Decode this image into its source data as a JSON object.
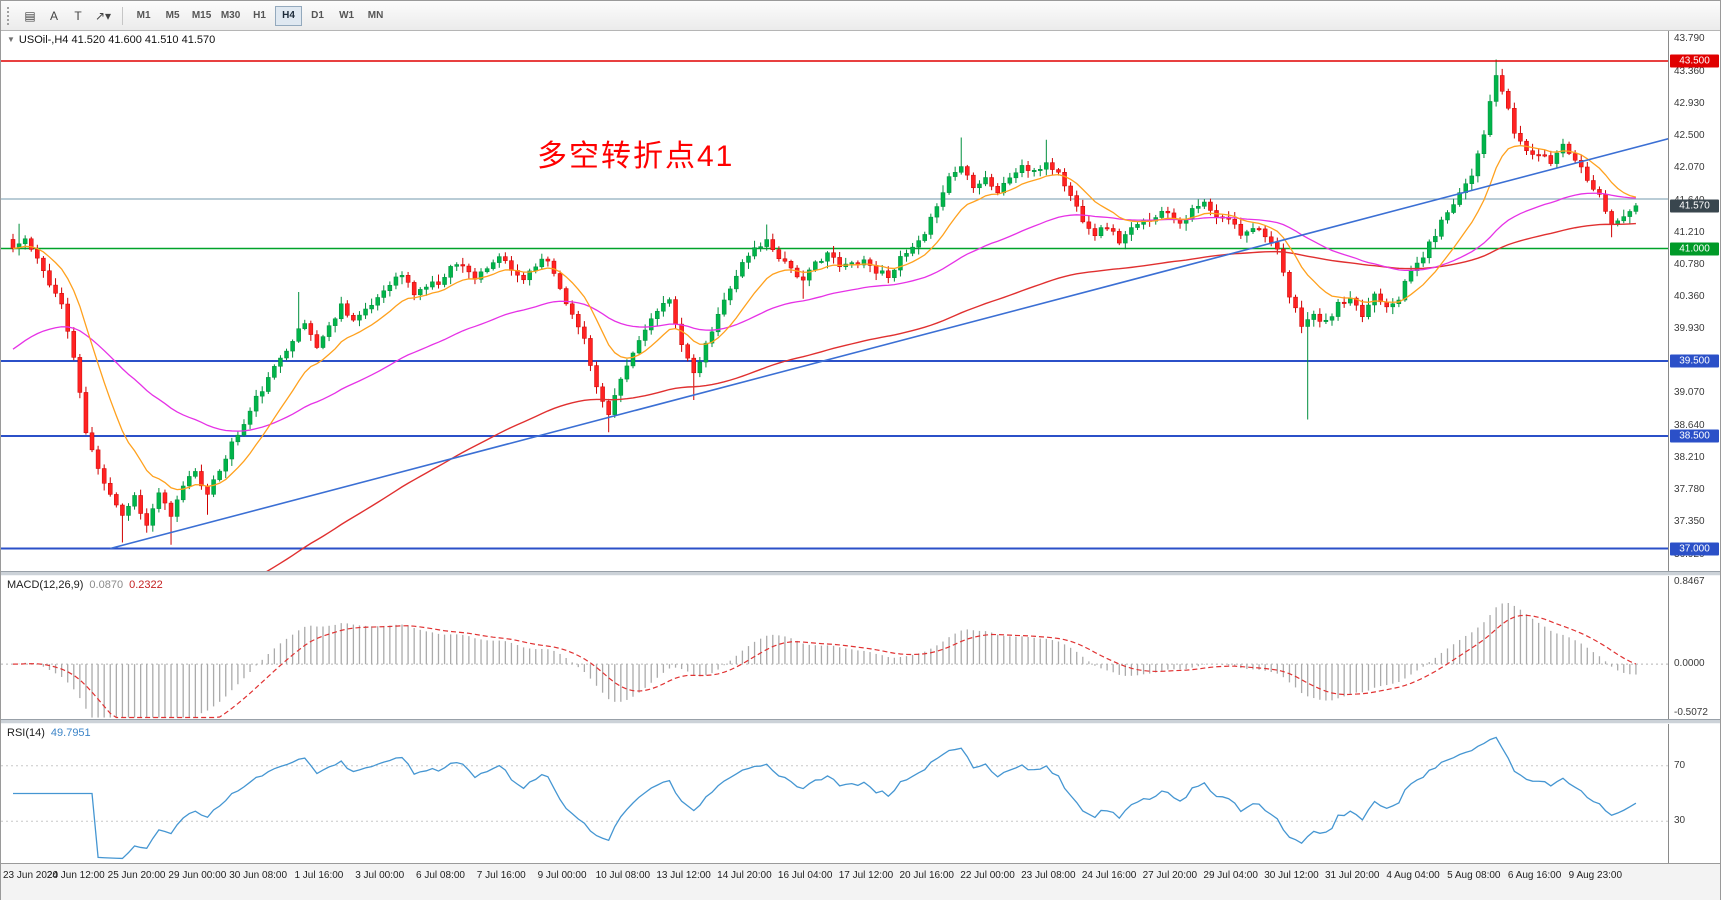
{
  "toolbar": {
    "left_icons": [
      {
        "name": "chart-windows-icon",
        "glyph": "▤"
      },
      {
        "name": "text-label-icon",
        "glyph": "A"
      },
      {
        "name": "text-box-icon",
        "glyph": "T"
      },
      {
        "name": "arrows-tool-dropdown-icon",
        "glyph": "↗▾"
      }
    ],
    "timeframes": [
      {
        "label": "M1",
        "active": false
      },
      {
        "label": "M5",
        "active": false
      },
      {
        "label": "M15",
        "active": false
      },
      {
        "label": "M30",
        "active": false
      },
      {
        "label": "H1",
        "active": false
      },
      {
        "label": "H4",
        "active": true
      },
      {
        "label": "D1",
        "active": false
      },
      {
        "label": "W1",
        "active": false
      },
      {
        "label": "MN",
        "active": false
      }
    ]
  },
  "chart": {
    "collapse_icon": "▼",
    "symbol": "USOil-,H4",
    "ohlc": "41.520 41.600 41.510 41.570",
    "annotation": {
      "text": "多空转折点41",
      "color": "#ff0000"
    },
    "price_axis_ticks": [
      "43.790",
      "43.360",
      "42.930",
      "42.500",
      "42.070",
      "41.640",
      "41.210",
      "40.780",
      "40.360",
      "39.930",
      "39.500",
      "39.070",
      "38.640",
      "38.210",
      "37.780",
      "37.350",
      "36.920"
    ],
    "price_top": 43.9,
    "price_bottom": 36.7,
    "bid": {
      "value": 41.57,
      "label": "41.570",
      "badge_color": "#39464e"
    },
    "hlines": [
      {
        "price": 43.5,
        "label": "43.500",
        "color": "#e00000",
        "width": 1.4,
        "badge": "#e00000",
        "z": "over"
      },
      {
        "price": 41.66,
        "label": "",
        "color": "#8fadbd",
        "width": 1.2,
        "badge": "",
        "z": "under"
      },
      {
        "price": 41.0,
        "label": "41.000",
        "color": "#00a32a",
        "width": 1.6,
        "badge": "#009a28",
        "z": "under"
      },
      {
        "price": 39.5,
        "label": "39.500",
        "color": "#2b50c8",
        "width": 2,
        "badge": "#2b50c8",
        "z": "under"
      },
      {
        "price": 38.5,
        "label": "38.500",
        "color": "#2b50c8",
        "width": 2,
        "badge": "#2b50c8",
        "z": "under"
      },
      {
        "price": 37.0,
        "label": "37.000",
        "color": "#2b50c8",
        "width": 2,
        "badge": "#2b50c8",
        "z": "under"
      }
    ],
    "trendline": {
      "b1": 16,
      "p1": 37.0,
      "b2": 267,
      "p2": 42.35,
      "color": "#3b6fd4",
      "width": 1.6
    },
    "mas": [
      {
        "name": "ma-slow-red",
        "color": "#e03030",
        "period": 110,
        "seed": 34.5,
        "width": 1.4
      },
      {
        "name": "ma-medium-magenta",
        "color": "#e632e6",
        "period": 48,
        "seed": 39.6,
        "width": 1.3
      },
      {
        "name": "ma-fast-orange",
        "color": "#ffa11e",
        "period": 12,
        "seed": null,
        "width": 1.3
      }
    ],
    "candles": {
      "count": 268,
      "up_color": "#00b44a",
      "up_stroke": "#008f3c",
      "down_color": "#ff2222",
      "down_stroke": "#cf0000",
      "anchors": [
        [
          0,
          41.0
        ],
        [
          2,
          41.12
        ],
        [
          5,
          40.7
        ],
        [
          8,
          40.25
        ],
        [
          10,
          39.55
        ],
        [
          12,
          38.55
        ],
        [
          14,
          38.05
        ],
        [
          16,
          37.75
        ],
        [
          18,
          37.45
        ],
        [
          20,
          37.7
        ],
        [
          22,
          37.3
        ],
        [
          24,
          37.75
        ],
        [
          26,
          37.4
        ],
        [
          28,
          37.85
        ],
        [
          30,
          38.05
        ],
        [
          32,
          37.7
        ],
        [
          34,
          38.05
        ],
        [
          36,
          38.4
        ],
        [
          38,
          38.65
        ],
        [
          40,
          39.0
        ],
        [
          42,
          39.25
        ],
        [
          44,
          39.55
        ],
        [
          46,
          39.8
        ],
        [
          48,
          40.0
        ],
        [
          50,
          39.7
        ],
        [
          52,
          39.95
        ],
        [
          54,
          40.25
        ],
        [
          56,
          40.05
        ],
        [
          58,
          40.15
        ],
        [
          60,
          40.35
        ],
        [
          62,
          40.55
        ],
        [
          64,
          40.65
        ],
        [
          66,
          40.4
        ],
        [
          68,
          40.5
        ],
        [
          70,
          40.55
        ],
        [
          72,
          40.75
        ],
        [
          74,
          40.8
        ],
        [
          76,
          40.6
        ],
        [
          78,
          40.7
        ],
        [
          80,
          40.9
        ],
        [
          82,
          40.7
        ],
        [
          84,
          40.6
        ],
        [
          86,
          40.8
        ],
        [
          88,
          40.85
        ],
        [
          90,
          40.5
        ],
        [
          92,
          40.1
        ],
        [
          94,
          39.8
        ],
        [
          96,
          39.15
        ],
        [
          98,
          38.75
        ],
        [
          100,
          39.25
        ],
        [
          102,
          39.6
        ],
        [
          104,
          39.95
        ],
        [
          106,
          40.15
        ],
        [
          108,
          40.3
        ],
        [
          110,
          39.75
        ],
        [
          112,
          39.3
        ],
        [
          114,
          39.7
        ],
        [
          116,
          40.1
        ],
        [
          118,
          40.5
        ],
        [
          120,
          40.8
        ],
        [
          122,
          41.0
        ],
        [
          124,
          41.1
        ],
        [
          126,
          40.9
        ],
        [
          128,
          40.75
        ],
        [
          130,
          40.55
        ],
        [
          132,
          40.8
        ],
        [
          134,
          40.95
        ],
        [
          136,
          40.75
        ],
        [
          138,
          40.8
        ],
        [
          140,
          40.85
        ],
        [
          142,
          40.7
        ],
        [
          144,
          40.65
        ],
        [
          146,
          40.85
        ],
        [
          148,
          41.0
        ],
        [
          150,
          41.15
        ],
        [
          152,
          41.6
        ],
        [
          154,
          41.95
        ],
        [
          156,
          42.1
        ],
        [
          158,
          41.85
        ],
        [
          160,
          41.95
        ],
        [
          162,
          41.75
        ],
        [
          164,
          41.95
        ],
        [
          166,
          42.1
        ],
        [
          168,
          42.0
        ],
        [
          170,
          42.15
        ],
        [
          172,
          42.0
        ],
        [
          174,
          41.7
        ],
        [
          176,
          41.4
        ],
        [
          178,
          41.2
        ],
        [
          180,
          41.3
        ],
        [
          182,
          41.1
        ],
        [
          184,
          41.25
        ],
        [
          186,
          41.35
        ],
        [
          188,
          41.45
        ],
        [
          190,
          41.5
        ],
        [
          192,
          41.35
        ],
        [
          194,
          41.5
        ],
        [
          196,
          41.6
        ],
        [
          198,
          41.4
        ],
        [
          200,
          41.4
        ],
        [
          202,
          41.2
        ],
        [
          204,
          41.3
        ],
        [
          206,
          41.2
        ],
        [
          208,
          40.95
        ],
        [
          210,
          40.35
        ],
        [
          212,
          40.0
        ],
        [
          214,
          40.1
        ],
        [
          216,
          40.0
        ],
        [
          218,
          40.25
        ],
        [
          220,
          40.3
        ],
        [
          222,
          40.1
        ],
        [
          224,
          40.4
        ],
        [
          226,
          40.25
        ],
        [
          228,
          40.35
        ],
        [
          230,
          40.7
        ],
        [
          232,
          40.9
        ],
        [
          234,
          41.2
        ],
        [
          236,
          41.5
        ],
        [
          238,
          41.75
        ],
        [
          240,
          42.0
        ],
        [
          242,
          42.55
        ],
        [
          244,
          43.3
        ],
        [
          245,
          43.1
        ],
        [
          247,
          42.55
        ],
        [
          249,
          42.3
        ],
        [
          251,
          42.25
        ],
        [
          253,
          42.15
        ],
        [
          255,
          42.4
        ],
        [
          257,
          42.2
        ],
        [
          259,
          41.95
        ],
        [
          261,
          41.7
        ],
        [
          263,
          41.35
        ],
        [
          265,
          41.4
        ],
        [
          267,
          41.57
        ]
      ],
      "wicks": [
        {
          "b": 1,
          "high": 41.33
        },
        {
          "b": 18,
          "low": 37.08
        },
        {
          "b": 26,
          "low": 37.05
        },
        {
          "b": 32,
          "low": 37.45
        },
        {
          "b": 47,
          "high": 40.42
        },
        {
          "b": 98,
          "low": 38.55
        },
        {
          "b": 112,
          "low": 38.98
        },
        {
          "b": 124,
          "high": 41.32
        },
        {
          "b": 130,
          "low": 40.33
        },
        {
          "b": 156,
          "high": 42.48
        },
        {
          "b": 170,
          "high": 42.45
        },
        {
          "b": 213,
          "low": 38.72
        },
        {
          "b": 244,
          "high": 43.52
        },
        {
          "b": 263,
          "low": 41.15
        }
      ]
    }
  },
  "macd": {
    "name": "MACD(12,26,9)",
    "value_main": "0.0870",
    "value_signal": "0.2322",
    "scale_labels": [
      {
        "v": 0.8467,
        "t": "0.8467"
      },
      {
        "v": 0,
        "t": "0.0000"
      },
      {
        "v": -0.5072,
        "t": "-0.5072"
      }
    ],
    "vmax": 0.9,
    "vmin": -0.56,
    "hist_color": "#ababab",
    "signal_color": "#e03232"
  },
  "rsi": {
    "name": "RSI(14)",
    "value": "49.7951",
    "period": 14,
    "line_color": "#4596d2",
    "scale_labels": [
      {
        "v": 70,
        "t": "70"
      },
      {
        "v": 30,
        "t": "30"
      }
    ]
  },
  "time_axis": [
    "23 Jun 2020",
    "24 Jun 12:00",
    "25 Jun 20:00",
    "29 Jun 00:00",
    "30 Jun 08:00",
    "1 Jul 16:00",
    "3 Jul 00:00",
    "6 Jul 08:00",
    "7 Jul 16:00",
    "9 Jul 00:00",
    "10 Jul 08:00",
    "13 Jul 12:00",
    "14 Jul 20:00",
    "16 Jul 04:00",
    "17 Jul 12:00",
    "20 Jul 16:00",
    "22 Jul 00:00",
    "23 Jul 08:00",
    "24 Jul 16:00",
    "27 Jul 20:00",
    "29 Jul 04:00",
    "30 Jul 12:00",
    "31 Jul 20:00",
    "4 Aug 04:00",
    "5 Aug 08:00",
    "6 Aug 16:00",
    "9 Aug 23:00"
  ]
}
